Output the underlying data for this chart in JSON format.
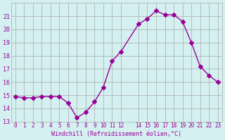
{
  "x": [
    0,
    1,
    2,
    3,
    4,
    5,
    6,
    7,
    8,
    9,
    10,
    11,
    12,
    14,
    15,
    16,
    17,
    18,
    19,
    20,
    21,
    22,
    23
  ],
  "y": [
    14.9,
    14.8,
    14.8,
    14.9,
    14.9,
    14.9,
    14.4,
    13.3,
    13.7,
    14.5,
    15.6,
    17.6,
    18.3,
    20.4,
    20.8,
    21.4,
    21.1,
    21.1,
    20.6,
    19.0,
    17.2,
    16.5,
    16.0
  ],
  "line_color": "#990099",
  "marker": "D",
  "marker_size": 3,
  "bg_color": "#d4f0f0",
  "grid_color": "#aaaaaa",
  "xlabel": "Windchill (Refroidissement éolien,°C)",
  "xlabel_color": "#990099",
  "ylabel_color": "#990099",
  "tick_color": "#990099",
  "ylim": [
    13,
    22
  ],
  "xlim": [
    -0.5,
    23.5
  ],
  "yticks": [
    13,
    14,
    15,
    16,
    17,
    18,
    19,
    20,
    21
  ],
  "xticks": [
    0,
    1,
    2,
    3,
    4,
    5,
    6,
    7,
    8,
    9,
    10,
    11,
    12,
    14,
    15,
    16,
    17,
    18,
    19,
    20,
    21,
    22,
    23
  ],
  "xtick_labels": [
    "0",
    "1",
    "2",
    "3",
    "4",
    "5",
    "6",
    "7",
    "8",
    "9",
    "10",
    "11",
    "12",
    "14",
    "15",
    "16",
    "17",
    "18",
    "19",
    "20",
    "21",
    "22",
    "23"
  ]
}
